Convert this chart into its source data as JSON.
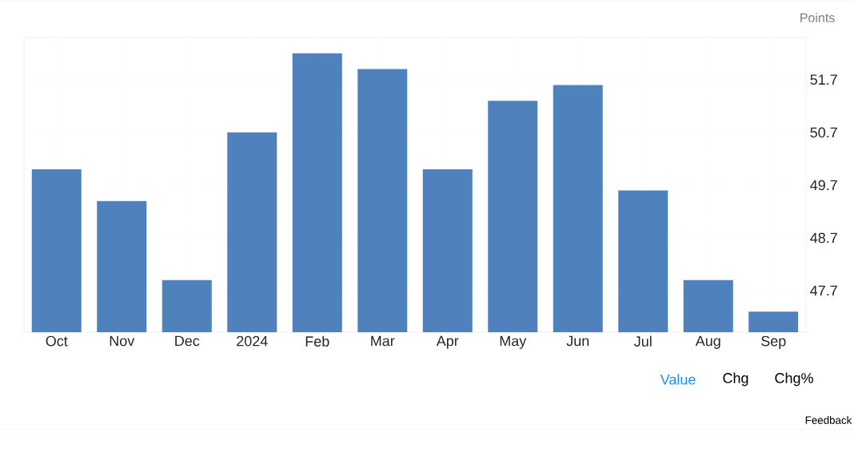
{
  "chart_data": {
    "type": "bar",
    "ylabel": "Points",
    "categories": [
      "Oct",
      "Nov",
      "Dec",
      "2024",
      "Feb",
      "Mar",
      "Apr",
      "May",
      "Jun",
      "Jul",
      "Aug",
      "Sep"
    ],
    "values": [
      50.0,
      49.4,
      47.9,
      50.7,
      52.2,
      51.9,
      50.0,
      51.3,
      51.6,
      49.6,
      47.9,
      47.3
    ],
    "color": "#4f81bd",
    "ylim": [
      46.91,
      52.5
    ],
    "yticks": [
      47.7,
      48.7,
      49.7,
      50.7,
      51.7
    ],
    "grid": true,
    "annotations": [
      "Value",
      "Chg",
      "Chg%",
      "Feedback"
    ]
  }
}
